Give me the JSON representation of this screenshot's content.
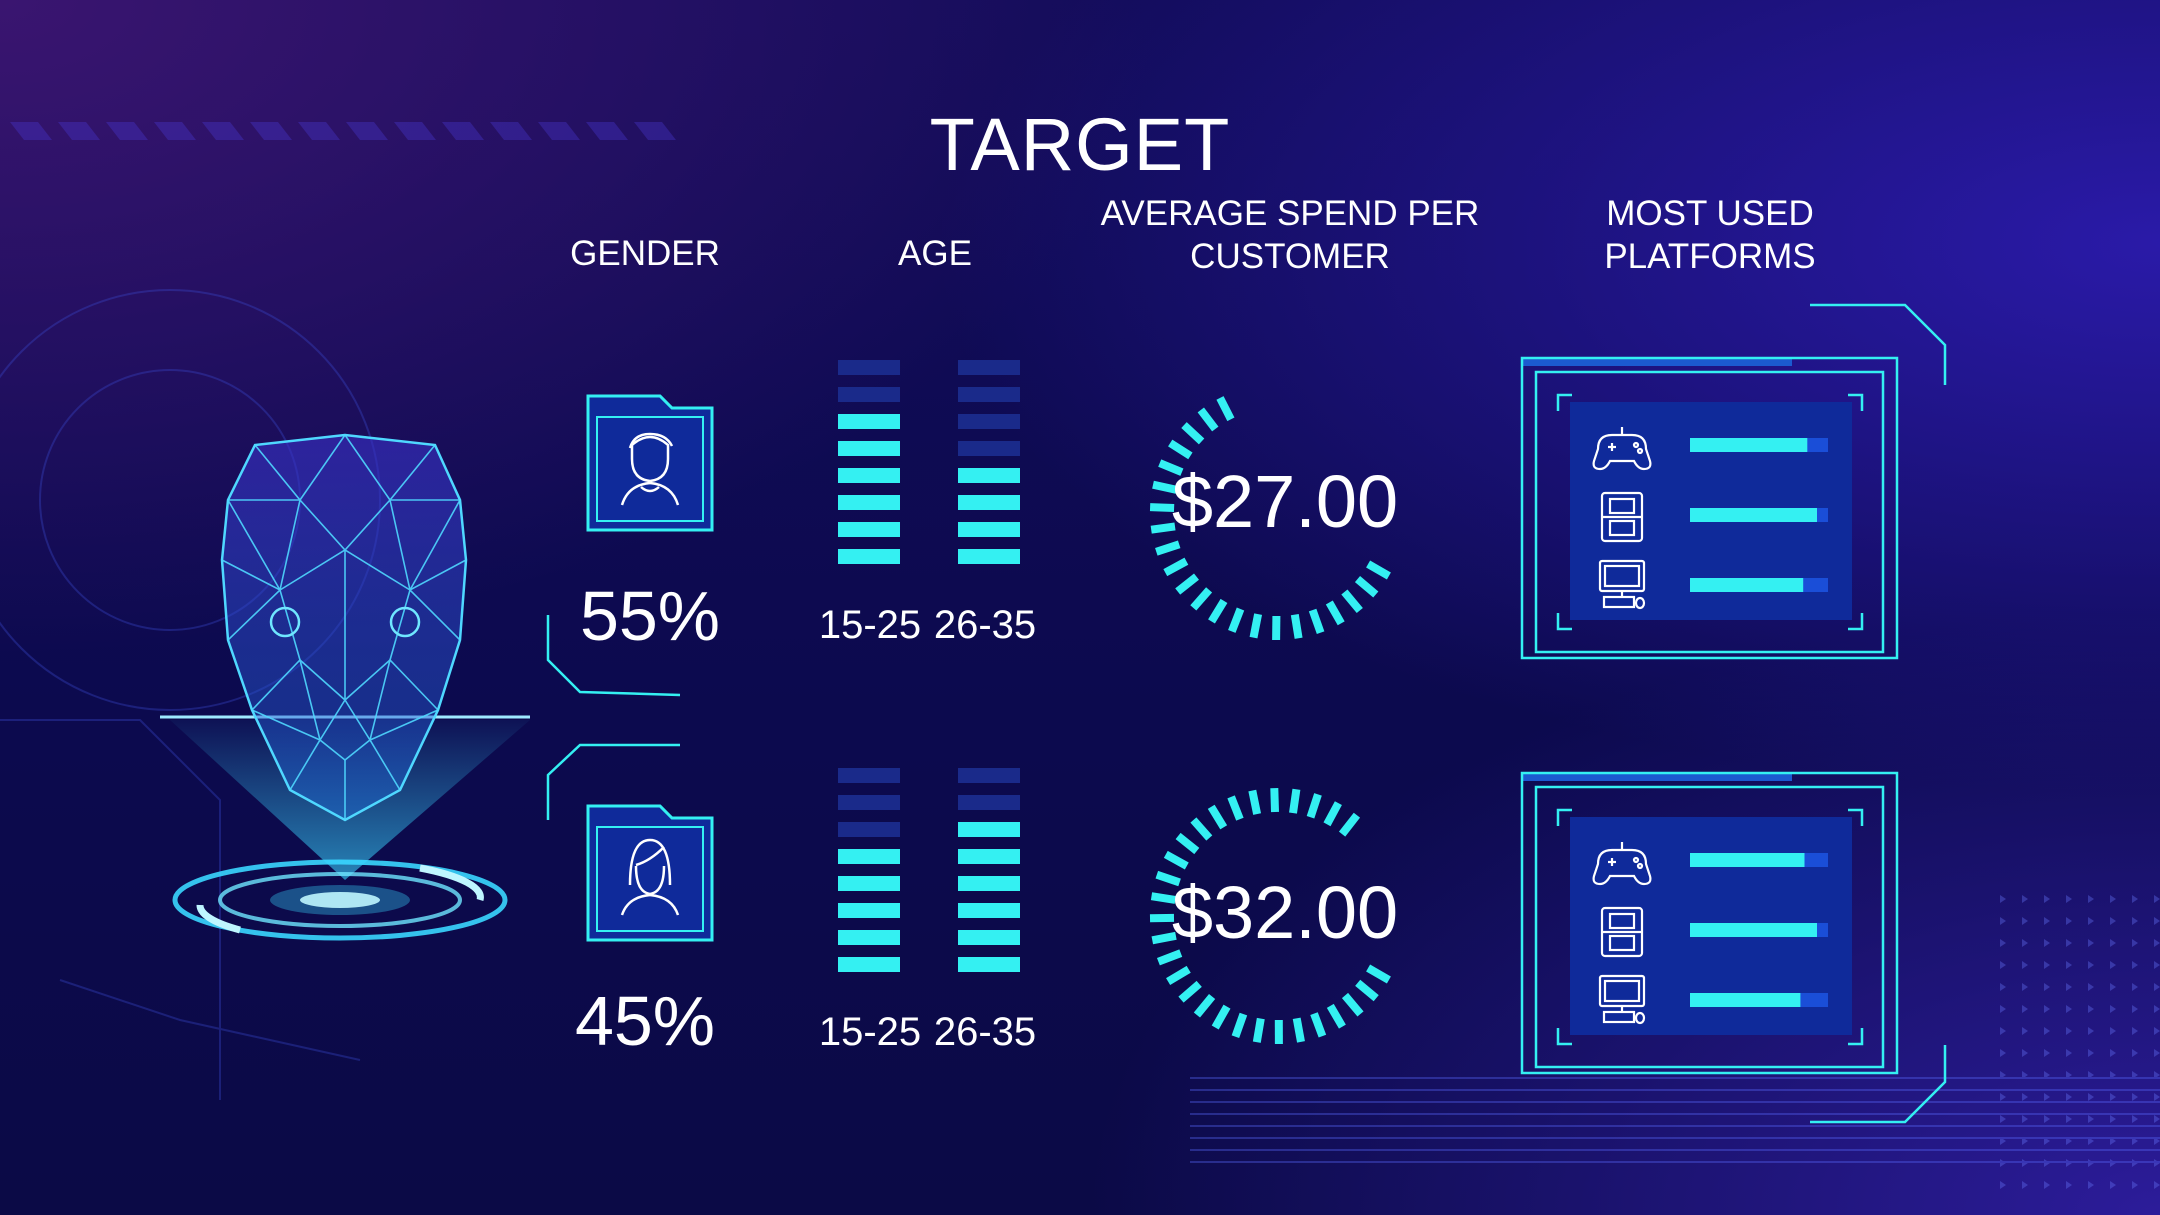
{
  "title": "TARGET",
  "headers": {
    "gender": "GENDER",
    "age": "AGE",
    "spend_line1": "AVERAGE SPEND PER",
    "spend_line2": "CUSTOMER",
    "platforms_line1": "MOST USED",
    "platforms_line2": "PLATFORMS"
  },
  "segments": [
    {
      "avatar_icon": "male-avatar-icon",
      "gender_percent": "55%",
      "age_ranges": [
        "15-25",
        "26-35"
      ],
      "age_levels": [
        6,
        4
      ],
      "spend": "$27.00",
      "spend_gauge": 0.62,
      "platforms": [
        {
          "icon": "gamepad-icon",
          "level": 0.85
        },
        {
          "icon": "handheld-console-icon",
          "level": 0.92
        },
        {
          "icon": "desktop-computer-icon",
          "level": 0.82
        }
      ]
    },
    {
      "avatar_icon": "female-avatar-icon",
      "gender_percent": "45%",
      "age_ranges": [
        "15-25",
        "26-35"
      ],
      "age_levels": [
        5,
        6
      ],
      "spend": "$32.00",
      "spend_gauge": 0.8,
      "platforms": [
        {
          "icon": "gamepad-icon",
          "level": 0.83
        },
        {
          "icon": "handheld-console-icon",
          "level": 0.92
        },
        {
          "icon": "desktop-computer-icon",
          "level": 0.8
        }
      ]
    }
  ],
  "colors": {
    "accent": "#34f0f2",
    "accent_dim": "#1a2a8a",
    "panel": "#0f2a9a",
    "background": "#0d0a4e"
  }
}
